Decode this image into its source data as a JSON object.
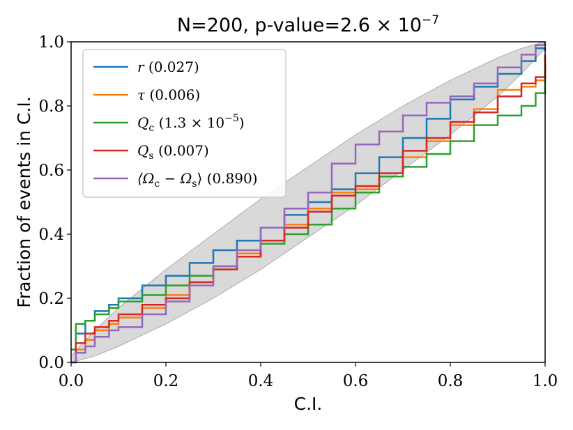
{
  "chart_data": {
    "type": "line",
    "title": "N=200, p-value=2.6 × 10⁻⁷",
    "title_parts": {
      "prefix": "N=200, p-value=",
      "mantissa": "2.6 × 10",
      "exponent": "−7"
    },
    "xlabel": "C.I.",
    "ylabel": "Fraction of events in C.I.",
    "xlim": [
      0.0,
      1.0
    ],
    "ylim": [
      0.0,
      1.0
    ],
    "xticks": [
      "0.0",
      "0.2",
      "0.4",
      "0.6",
      "0.8",
      "1.0"
    ],
    "yticks": [
      "0.0",
      "0.2",
      "0.4",
      "0.6",
      "0.8",
      "1.0"
    ],
    "legend_position": "top-left",
    "band": {
      "description": "credible band around diagonal",
      "color": "#d9d9d9",
      "upper": [
        [
          0,
          0.02
        ],
        [
          0.05,
          0.1
        ],
        [
          0.1,
          0.17
        ],
        [
          0.2,
          0.29
        ],
        [
          0.3,
          0.4
        ],
        [
          0.4,
          0.51
        ],
        [
          0.5,
          0.61
        ],
        [
          0.6,
          0.71
        ],
        [
          0.7,
          0.8
        ],
        [
          0.8,
          0.88
        ],
        [
          0.9,
          0.95
        ],
        [
          0.95,
          0.98
        ],
        [
          1.0,
          1.0
        ]
      ],
      "lower": [
        [
          0,
          0.0
        ],
        [
          0.05,
          0.02
        ],
        [
          0.1,
          0.05
        ],
        [
          0.2,
          0.12
        ],
        [
          0.3,
          0.2
        ],
        [
          0.4,
          0.29
        ],
        [
          0.5,
          0.39
        ],
        [
          0.6,
          0.49
        ],
        [
          0.7,
          0.6
        ],
        [
          0.8,
          0.71
        ],
        [
          0.9,
          0.83
        ],
        [
          0.95,
          0.9
        ],
        [
          1.0,
          0.98
        ]
      ]
    },
    "series": [
      {
        "name": "r",
        "legend_parts": {
          "base": "r",
          "sub": "",
          "rest": " (0.027)"
        },
        "color": "#1f77b4",
        "x": [
          0.0,
          0.01,
          0.03,
          0.05,
          0.08,
          0.1,
          0.15,
          0.2,
          0.25,
          0.3,
          0.35,
          0.4,
          0.45,
          0.5,
          0.55,
          0.6,
          0.65,
          0.7,
          0.75,
          0.8,
          0.85,
          0.9,
          0.95,
          0.98,
          1.0
        ],
        "y": [
          0.04,
          0.09,
          0.13,
          0.16,
          0.18,
          0.2,
          0.24,
          0.27,
          0.31,
          0.35,
          0.38,
          0.42,
          0.46,
          0.5,
          0.54,
          0.59,
          0.64,
          0.7,
          0.76,
          0.82,
          0.86,
          0.9,
          0.94,
          0.98,
          0.97
        ]
      },
      {
        "name": "τ",
        "legend_parts": {
          "base": "τ",
          "sub": "",
          "rest": " (0.006)"
        },
        "color": "#ff7f0e",
        "x": [
          0.0,
          0.01,
          0.03,
          0.05,
          0.08,
          0.1,
          0.15,
          0.2,
          0.25,
          0.3,
          0.35,
          0.4,
          0.45,
          0.5,
          0.55,
          0.6,
          0.65,
          0.7,
          0.75,
          0.8,
          0.85,
          0.9,
          0.95,
          0.98,
          1.0
        ],
        "y": [
          0.0,
          0.04,
          0.07,
          0.1,
          0.12,
          0.14,
          0.17,
          0.21,
          0.25,
          0.3,
          0.34,
          0.38,
          0.43,
          0.48,
          0.53,
          0.54,
          0.58,
          0.64,
          0.69,
          0.74,
          0.79,
          0.85,
          0.86,
          0.88,
          0.94
        ]
      },
      {
        "name": "Q_c",
        "legend_parts": {
          "base": "Q",
          "sub": "c",
          "rest": " (1.3 × 10",
          "sup": "−5",
          "tail": ")"
        },
        "color": "#2ca02c",
        "x": [
          0.0,
          0.01,
          0.03,
          0.05,
          0.08,
          0.1,
          0.15,
          0.2,
          0.25,
          0.3,
          0.35,
          0.4,
          0.45,
          0.5,
          0.55,
          0.6,
          0.65,
          0.7,
          0.75,
          0.8,
          0.85,
          0.9,
          0.95,
          0.98,
          1.0
        ],
        "y": [
          0.04,
          0.12,
          0.13,
          0.15,
          0.17,
          0.19,
          0.21,
          0.24,
          0.27,
          0.29,
          0.33,
          0.37,
          0.4,
          0.43,
          0.48,
          0.53,
          0.58,
          0.61,
          0.65,
          0.69,
          0.74,
          0.77,
          0.8,
          0.84,
          0.92
        ]
      },
      {
        "name": "Q_s",
        "legend_parts": {
          "base": "Q",
          "sub": "s",
          "rest": " (0.007)"
        },
        "color": "#d62728",
        "x": [
          0.0,
          0.01,
          0.03,
          0.05,
          0.08,
          0.1,
          0.15,
          0.2,
          0.25,
          0.3,
          0.35,
          0.4,
          0.45,
          0.5,
          0.55,
          0.6,
          0.65,
          0.7,
          0.75,
          0.8,
          0.85,
          0.9,
          0.95,
          0.98,
          1.0
        ],
        "y": [
          0.0,
          0.06,
          0.09,
          0.11,
          0.13,
          0.15,
          0.18,
          0.2,
          0.25,
          0.29,
          0.33,
          0.38,
          0.42,
          0.47,
          0.52,
          0.55,
          0.59,
          0.66,
          0.7,
          0.75,
          0.78,
          0.83,
          0.87,
          0.89,
          0.96
        ]
      },
      {
        "name": "⟨Ωc − Ωs⟩",
        "legend_parts": {
          "base": "⟨Ω",
          "sub": "c",
          "mid": " − Ω",
          "sub2": "s",
          "rest": "⟩ (0.890)"
        },
        "color": "#9467bd",
        "x": [
          0.0,
          0.01,
          0.03,
          0.05,
          0.08,
          0.1,
          0.15,
          0.2,
          0.25,
          0.3,
          0.35,
          0.4,
          0.45,
          0.5,
          0.55,
          0.6,
          0.65,
          0.7,
          0.75,
          0.8,
          0.85,
          0.9,
          0.95,
          0.98,
          1.0
        ],
        "y": [
          0.0,
          0.03,
          0.05,
          0.08,
          0.1,
          0.11,
          0.15,
          0.19,
          0.24,
          0.3,
          0.35,
          0.42,
          0.48,
          0.53,
          0.62,
          0.68,
          0.72,
          0.77,
          0.81,
          0.83,
          0.87,
          0.92,
          0.96,
          0.99,
          1.0
        ]
      }
    ]
  }
}
